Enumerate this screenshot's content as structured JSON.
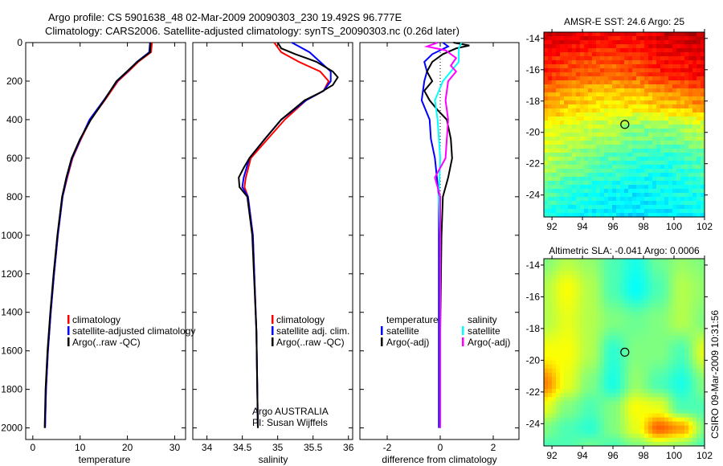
{
  "title_lines": [
    "Argo profile: CS 5901638_48 02-Mar-2009 20090303_230 19.492S 96.777E",
    "Climatology: CARS2006. Satellite-adjusted climatology: synTS_20090303.nc (0.26d later)"
  ],
  "footer_stamp": "CSIRO 09-Mar-2009 10:31:56",
  "float_info": [
    "Argo AUSTRALIA",
    "PI: Susan Wijffels"
  ],
  "colors": {
    "red": "#ff0000",
    "blue": "#0000ff",
    "black": "#000000",
    "cyan": "#00ffff",
    "magenta": "#ff00ff"
  },
  "chart_data": [
    {
      "type": "line",
      "id": "temperature",
      "xlabel": "temperature",
      "ylabel": "",
      "xlim": [
        -1.5,
        32.3
      ],
      "ylim": [
        0,
        2060
      ],
      "y_reversed": true,
      "xticks": [
        0,
        10,
        20,
        30
      ],
      "yticks": [
        0,
        200,
        400,
        600,
        800,
        1000,
        1200,
        1400,
        1600,
        1800,
        2000
      ],
      "legend": {
        "placement": "lower-middle",
        "entries": [
          "climatology",
          "satellite-adjusted climatology",
          "Argo(..raw -QC)"
        ]
      },
      "series": [
        {
          "name": "climatology",
          "color": "red",
          "depth": [
            0,
            50,
            100,
            150,
            200,
            300,
            400,
            500,
            600,
            700,
            800,
            1000,
            1200,
            1400,
            1600,
            1800,
            2000
          ],
          "values": [
            25.2,
            25,
            22.3,
            20.2,
            18,
            15.2,
            12.2,
            10.2,
            8.4,
            7.3,
            6.3,
            5.3,
            4.5,
            3.8,
            3.2,
            2.8,
            2.6
          ]
        },
        {
          "name": "satellite-adjusted climatology",
          "color": "blue",
          "depth": [
            0,
            50,
            100,
            150,
            200,
            300,
            400,
            500,
            600,
            700,
            800,
            1000,
            1200,
            1400,
            1600,
            1800,
            2000
          ],
          "values": [
            24.8,
            24.6,
            22,
            20,
            17.8,
            15,
            12,
            10.1,
            8.3,
            7.2,
            6.3,
            5.3,
            4.5,
            3.8,
            3.2,
            2.8,
            2.6
          ]
        },
        {
          "name": "Argo(..raw -QC)",
          "color": "black",
          "depth": [
            0,
            50,
            100,
            150,
            200,
            300,
            400,
            500,
            600,
            700,
            800,
            1000,
            1200,
            1400,
            1600,
            1800,
            2000
          ],
          "values": [
            24.9,
            24.8,
            22.1,
            19.9,
            17.7,
            15.1,
            12.3,
            10,
            8.2,
            7.1,
            6.2,
            5.2,
            4.4,
            3.7,
            3.1,
            2.7,
            2.5
          ]
        }
      ]
    },
    {
      "type": "line",
      "id": "salinity",
      "xlabel": "salinity",
      "ylabel": "",
      "xlim": [
        33.8,
        36.06
      ],
      "ylim": [
        0,
        2060
      ],
      "y_reversed": true,
      "xticks": [
        34,
        34.5,
        35,
        35.5,
        36
      ],
      "yticks": [
        0,
        200,
        400,
        600,
        800,
        1000,
        1200,
        1400,
        1600,
        1800,
        2000
      ],
      "legend": {
        "placement": "lower-middle",
        "entries": [
          "climatology",
          "satellite adj. clim.",
          "Argo(..raw -QC)"
        ]
      },
      "series": [
        {
          "name": "climatology",
          "color": "red",
          "depth": [
            0,
            50,
            100,
            150,
            200,
            250,
            300,
            400,
            500,
            600,
            700,
            750,
            800,
            1000,
            1500,
            2000
          ],
          "values": [
            34.95,
            35.05,
            35.3,
            35.6,
            35.72,
            35.65,
            35.4,
            35.1,
            34.86,
            34.62,
            34.55,
            34.53,
            34.58,
            34.65,
            34.7,
            34.72
          ]
        },
        {
          "name": "satellite adj. clim.",
          "color": "blue",
          "depth": [
            0,
            20,
            50,
            100,
            150,
            200,
            250,
            300,
            400,
            500,
            600,
            700,
            750,
            800,
            1000,
            1500,
            2000
          ],
          "values": [
            35.2,
            35.3,
            35.45,
            35.6,
            35.75,
            35.75,
            35.65,
            35.4,
            35.05,
            34.82,
            34.6,
            34.52,
            34.5,
            34.58,
            34.65,
            34.7,
            34.72
          ]
        },
        {
          "name": "Argo(..raw -QC)",
          "color": "black",
          "depth": [
            0,
            30,
            60,
            100,
            150,
            180,
            220,
            260,
            300,
            400,
            500,
            600,
            650,
            700,
            750,
            800,
            1000,
            1500,
            2000
          ],
          "values": [
            35.0,
            35.05,
            35.25,
            35.55,
            35.78,
            35.85,
            35.78,
            35.6,
            35.38,
            35.05,
            34.82,
            34.6,
            34.52,
            34.45,
            34.46,
            34.57,
            34.64,
            34.7,
            34.72
          ]
        }
      ]
    },
    {
      "type": "line",
      "id": "difference",
      "xlabel": "difference from climatology",
      "ylabel": "",
      "xlim": [
        -3.03,
        2.97
      ],
      "ylim": [
        0,
        2060
      ],
      "y_reversed": true,
      "xticks": [
        -2,
        0,
        2
      ],
      "yticks": [
        0,
        200,
        400,
        600,
        800,
        1000,
        1200,
        1400,
        1600,
        1800,
        2000
      ],
      "legend": {
        "placement": "lower-middle",
        "groups": [
          {
            "heading": "temperature",
            "entries": [
              "satellite",
              "Argo(-adj)"
            ]
          },
          {
            "heading": "salinity",
            "entries": [
              "satellite",
              "Argo(-adj)"
            ]
          }
        ]
      },
      "series": [
        {
          "name": "temperature satellite",
          "color": "blue",
          "depth": [
            0,
            20,
            60,
            100,
            150,
            200,
            300,
            400,
            500,
            600,
            800,
            1000,
            2000
          ],
          "values": [
            0.1,
            0.3,
            -0.3,
            -0.6,
            -0.5,
            -0.6,
            -0.7,
            -0.4,
            -0.35,
            -0.2,
            -0.05,
            -0.05,
            -0.05
          ]
        },
        {
          "name": "temperature Argo(-adj)",
          "color": "black",
          "depth": [
            0,
            15,
            30,
            60,
            100,
            150,
            200,
            250,
            300,
            350,
            400,
            500,
            600,
            700,
            800,
            1000,
            1500,
            2000
          ],
          "values": [
            0.5,
            1.1,
            0.6,
            0.1,
            -0.3,
            -0.5,
            -0.3,
            -0.6,
            -0.4,
            -0.1,
            0.25,
            0.4,
            0.45,
            0.3,
            0.1,
            0.05,
            0,
            0
          ]
        },
        {
          "name": "salinity satellite",
          "color": "cyan",
          "depth": [
            0,
            30,
            100,
            150,
            200,
            300,
            400,
            600,
            800,
            1000,
            2000
          ],
          "values": [
            0.8,
            0.7,
            0.7,
            0.4,
            0.1,
            -0.2,
            -0.1,
            0,
            -0.05,
            0,
            0
          ]
        },
        {
          "name": "salinity Argo(-adj)",
          "color": "magenta",
          "depth": [
            0,
            20,
            40,
            80,
            120,
            150,
            200,
            300,
            400,
            500,
            600,
            700,
            750,
            800,
            1000,
            2000
          ],
          "values": [
            -0.1,
            -0.5,
            0.2,
            0.6,
            0.4,
            0.6,
            0.3,
            0.2,
            0.3,
            0.25,
            0.2,
            -0.2,
            -0.1,
            0,
            0,
            0
          ]
        }
      ]
    },
    {
      "type": "heatmap",
      "id": "sst",
      "title": "AMSR-E SST: 24.6 Argo: 25",
      "xlim": [
        91.47,
        102.0
      ],
      "ylim": [
        -25.4,
        -13.6
      ],
      "xticks": [
        92,
        94,
        96,
        98,
        100,
        102
      ],
      "yticks": [
        -14,
        -16,
        -18,
        -20,
        -22,
        -24
      ],
      "argo_position": [
        96.777,
        -19.492
      ],
      "value_range": [
        0,
        1
      ],
      "grid_lat": [
        -13.6,
        -16,
        -18,
        -20,
        -22,
        -24,
        -25.4
      ],
      "grid_lon": [
        91.5,
        93.5,
        95.5,
        97.5,
        99.5,
        102
      ],
      "grid_values": [
        [
          0.92,
          0.9,
          0.88,
          0.88,
          0.92,
          0.93
        ],
        [
          0.85,
          0.8,
          0.78,
          0.8,
          0.85,
          0.88
        ],
        [
          0.72,
          0.68,
          0.65,
          0.66,
          0.7,
          0.74
        ],
        [
          0.6,
          0.58,
          0.55,
          0.5,
          0.5,
          0.55
        ],
        [
          0.55,
          0.5,
          0.45,
          0.42,
          0.4,
          0.45
        ],
        [
          0.45,
          0.4,
          0.38,
          0.36,
          0.38,
          0.4
        ],
        [
          0.4,
          0.38,
          0.36,
          0.35,
          0.36,
          0.38
        ]
      ]
    },
    {
      "type": "heatmap",
      "id": "sla",
      "title": "Altimetric SLA: -0.041 Argo: 0.0006",
      "xlim": [
        91.47,
        102.0
      ],
      "ylim": [
        -25.4,
        -13.6
      ],
      "xticks": [
        92,
        94,
        96,
        98,
        100,
        102
      ],
      "yticks": [
        -14,
        -16,
        -18,
        -20,
        -22,
        -24
      ],
      "argo_position": [
        96.777,
        -19.492
      ],
      "value_range": [
        0,
        1
      ],
      "grid_lat": [
        -13.6,
        -15.5,
        -17.5,
        -19.5,
        -21.5,
        -23,
        -24.3,
        -25.4
      ],
      "grid_lon": [
        91.5,
        93,
        94.5,
        96,
        97.5,
        99,
        100.5,
        102
      ],
      "grid_values": [
        [
          0.5,
          0.55,
          0.52,
          0.45,
          0.4,
          0.48,
          0.52,
          0.5
        ],
        [
          0.55,
          0.62,
          0.55,
          0.45,
          0.38,
          0.45,
          0.55,
          0.52
        ],
        [
          0.55,
          0.6,
          0.55,
          0.5,
          0.48,
          0.5,
          0.55,
          0.5
        ],
        [
          0.62,
          0.62,
          0.55,
          0.42,
          0.5,
          0.5,
          0.45,
          0.6
        ],
        [
          0.75,
          0.6,
          0.5,
          0.4,
          0.52,
          0.45,
          0.4,
          0.5
        ],
        [
          0.6,
          0.5,
          0.45,
          0.5,
          0.62,
          0.6,
          0.45,
          0.45
        ],
        [
          0.5,
          0.45,
          0.42,
          0.5,
          0.6,
          0.78,
          0.72,
          0.5
        ],
        [
          0.45,
          0.45,
          0.48,
          0.45,
          0.5,
          0.55,
          0.52,
          0.45
        ]
      ]
    }
  ]
}
